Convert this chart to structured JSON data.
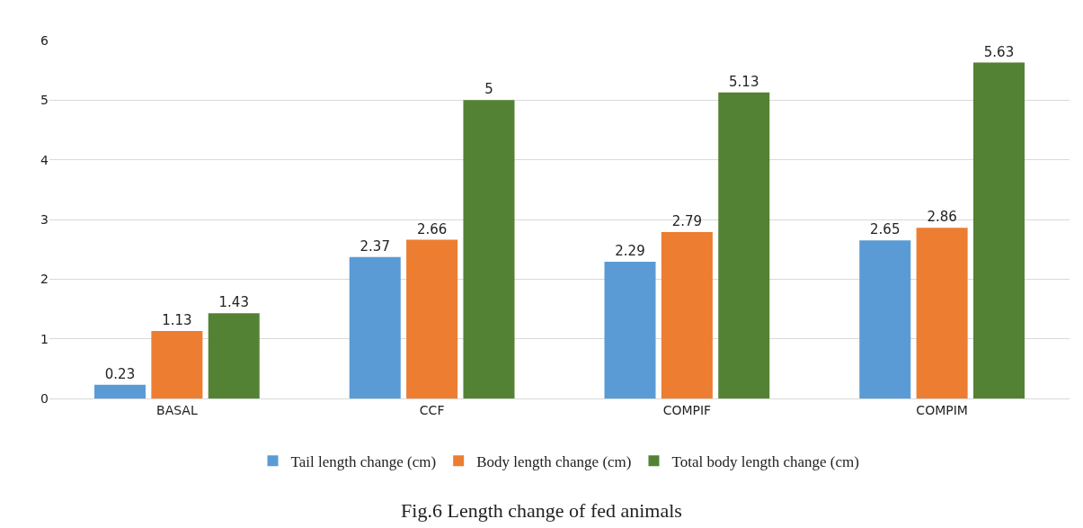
{
  "chart_data": {
    "type": "bar",
    "title": "Fig.6 Length change of fed animals",
    "categories": [
      "BASAL",
      "CCF",
      "COMPIF",
      "COMPIM"
    ],
    "series": [
      {
        "name": "Tail length change (cm)",
        "color": "#5b9bd5",
        "values": [
          0.23,
          2.37,
          2.29,
          2.65
        ]
      },
      {
        "name": "Body length change (cm)",
        "color": "#ed7d31",
        "values": [
          1.13,
          2.66,
          2.79,
          2.86
        ]
      },
      {
        "name": "Total body length change (cm)",
        "color": "#548235",
        "values": [
          1.43,
          5,
          5.13,
          5.63
        ]
      }
    ],
    "ylim": [
      0,
      6
    ],
    "yticks": [
      0,
      1,
      2,
      3,
      4,
      5,
      6
    ],
    "grid": "y",
    "legend": "bottom",
    "data_labels": true
  }
}
